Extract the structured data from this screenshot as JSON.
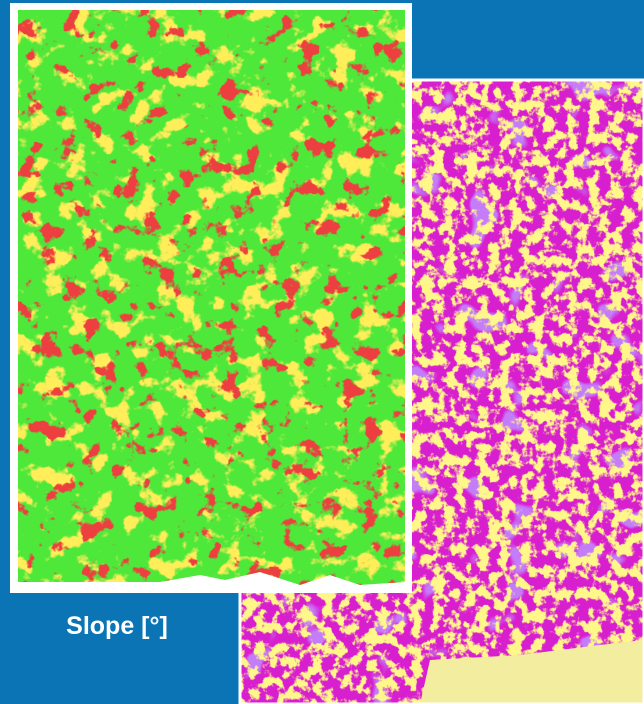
{
  "label": "Slope [°]"
}
